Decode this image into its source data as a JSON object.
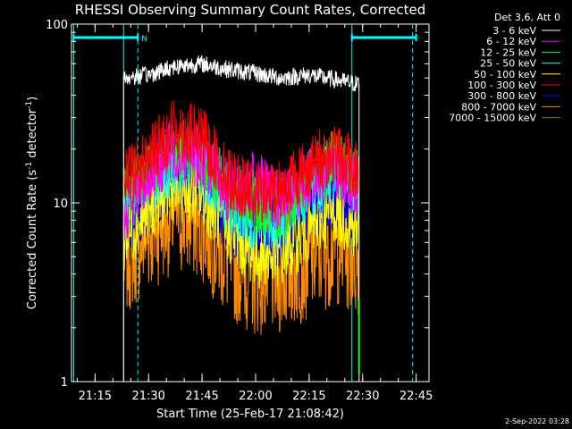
{
  "chart_data": {
    "type": "line",
    "title": "RHESSI Observing Summary Count Rates, Corrected",
    "xlabel": "Start Time (25-Feb-17 21:08:42)",
    "ylabel_main": "Corrected Count Rate (s",
    "ylabel_sup1": "-1",
    "ylabel_mid": " detector",
    "ylabel_sup2": "-1",
    "ylabel_end": ")",
    "yscale": "log",
    "ylim": [
      1,
      100
    ],
    "xlim_minutes": [
      21.14,
      22.81
    ],
    "yticks": [
      {
        "value": 1,
        "label": "1"
      },
      {
        "value": 10,
        "label": "10"
      },
      {
        "value": 100,
        "label": "100"
      }
    ],
    "xticks": [
      {
        "time": "21:15",
        "label": "21:15"
      },
      {
        "time": "21:30",
        "label": "21:30"
      },
      {
        "time": "21:45",
        "label": "21:45"
      },
      {
        "time": "22:00",
        "label": "22:00"
      },
      {
        "time": "22:15",
        "label": "22:15"
      },
      {
        "time": "22:30",
        "label": "22:30"
      },
      {
        "time": "22:45",
        "label": "22:45"
      }
    ],
    "legend_header": "Det 3,6, Att 0",
    "legend_position": "right",
    "series": [
      {
        "name": "3 - 6 keV",
        "color": "#ffffff",
        "x": [
          "21:23",
          "21:30",
          "21:37",
          "21:45",
          "21:52",
          "22:00",
          "22:07",
          "22:15",
          "22:22",
          "22:29"
        ],
        "y": [
          50,
          52,
          58,
          60,
          56,
          53,
          50,
          52,
          49,
          46
        ]
      },
      {
        "name": "6 - 12 keV",
        "color": "#ff00ff",
        "x": [
          "21:23",
          "21:30",
          "21:37",
          "21:45",
          "21:52",
          "22:00",
          "22:07",
          "22:15",
          "22:22",
          "22:29"
        ],
        "y": [
          9,
          14,
          20,
          18,
          12,
          13,
          10,
          14,
          16,
          12
        ]
      },
      {
        "name": "12 - 25 keV",
        "color": "#00ff00",
        "x": [
          "21:23",
          "21:30",
          "21:37",
          "21:45",
          "21:52",
          "22:00",
          "22:07",
          "22:15",
          "22:22",
          "22:29"
        ],
        "y": [
          11,
          15,
          20,
          18,
          12,
          10,
          9,
          14,
          17,
          13
        ]
      },
      {
        "name": "25 - 50 keV",
        "color": "#00ffff",
        "x": [
          "21:23",
          "21:30",
          "21:37",
          "21:45",
          "21:52",
          "22:00",
          "22:07",
          "22:15",
          "22:22",
          "22:29"
        ],
        "y": [
          10,
          13,
          17,
          16,
          10,
          8,
          8,
          12,
          15,
          12
        ]
      },
      {
        "name": "50 - 100 keV",
        "color": "#ffff00",
        "x": [
          "21:23",
          "21:30",
          "21:37",
          "21:45",
          "21:52",
          "22:00",
          "22:07",
          "22:15",
          "22:22",
          "22:29"
        ],
        "y": [
          6,
          9,
          12,
          11,
          7,
          5,
          5,
          7,
          9,
          7
        ]
      },
      {
        "name": "100 - 300 keV",
        "color": "#ff0000",
        "x": [
          "21:23",
          "21:30",
          "21:37",
          "21:45",
          "21:52",
          "22:00",
          "22:07",
          "22:15",
          "22:22",
          "22:29"
        ],
        "y": [
          13,
          18,
          26,
          23,
          14,
          11,
          12,
          16,
          19,
          15
        ]
      },
      {
        "name": "300 - 800 keV",
        "color": "#0000ff",
        "x": [
          "21:23",
          "21:30",
          "21:37",
          "21:45",
          "21:52",
          "22:00",
          "22:07",
          "22:15",
          "22:22",
          "22:29"
        ],
        "y": [
          7,
          10,
          14,
          12,
          8,
          6,
          6,
          9,
          11,
          9
        ]
      },
      {
        "name": "800 - 7000 keV",
        "color": "#ff8c00",
        "x": [
          "21:23",
          "21:30",
          "21:37",
          "21:45",
          "21:52",
          "22:00",
          "22:07",
          "22:15",
          "22:22",
          "22:29"
        ],
        "y": [
          5,
          7,
          9,
          8,
          5,
          4,
          4,
          5,
          6,
          5
        ]
      },
      {
        "name": "7000 - 15000 keV",
        "color": "#808000",
        "x": [
          "21:23",
          "21:30",
          "21:37",
          "21:45",
          "21:52",
          "22:00",
          "22:07",
          "22:15",
          "22:22",
          "22:29"
        ],
        "y": [
          null,
          null,
          null,
          null,
          null,
          null,
          null,
          null,
          null,
          null
        ]
      }
    ],
    "annotations": [
      {
        "type": "bar",
        "color": "#00ffff",
        "x_start": "21:09",
        "x_end": "21:27",
        "label": "N",
        "y": 85
      },
      {
        "type": "bar",
        "color": "#00ffff",
        "x_start": "22:27",
        "x_end": "22:45",
        "label": "",
        "y": 85
      }
    ],
    "vertical_lines": [
      {
        "time": "21:09",
        "color": "#00ffff",
        "style": "solid"
      },
      {
        "time": "21:23",
        "color": "#00ffff",
        "style": "solid"
      },
      {
        "time": "21:27",
        "color": "#00ffff",
        "style": "dashed"
      },
      {
        "time": "22:27",
        "color": "#00ffff",
        "style": "solid"
      },
      {
        "time": "22:44",
        "color": "#00ffff",
        "style": "dashed"
      }
    ],
    "green_spike": {
      "time": "22:29",
      "y_low": 1.1,
      "y_high": 2.9,
      "color": "#00ff00"
    }
  },
  "timestamp": "2-Sep-2022 03:28"
}
